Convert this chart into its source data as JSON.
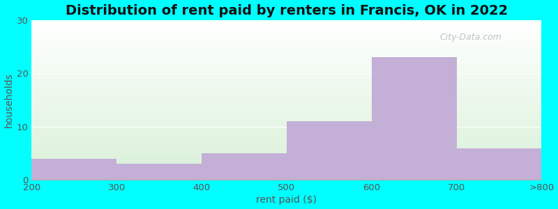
{
  "title": "Distribution of rent paid by renters in Francis, OK in 2022",
  "xlabel": "rent paid ($)",
  "ylabel": "households",
  "bin_edges_labels": [
    "200",
    "300",
    "400",
    "500",
    "600",
    "700",
    ">800"
  ],
  "values": [
    4,
    3,
    5,
    11,
    23,
    6
  ],
  "bar_color": "#c4afd6",
  "bg_color": "#00ffff",
  "plot_bg_bottom": "#d8f0d8",
  "plot_bg_top": "#ffffff",
  "ylim": [
    0,
    30
  ],
  "yticks": [
    0,
    10,
    20,
    30
  ],
  "title_fontsize": 14,
  "axis_label_fontsize": 10,
  "tick_fontsize": 9.5,
  "watermark": "City-Data.com"
}
